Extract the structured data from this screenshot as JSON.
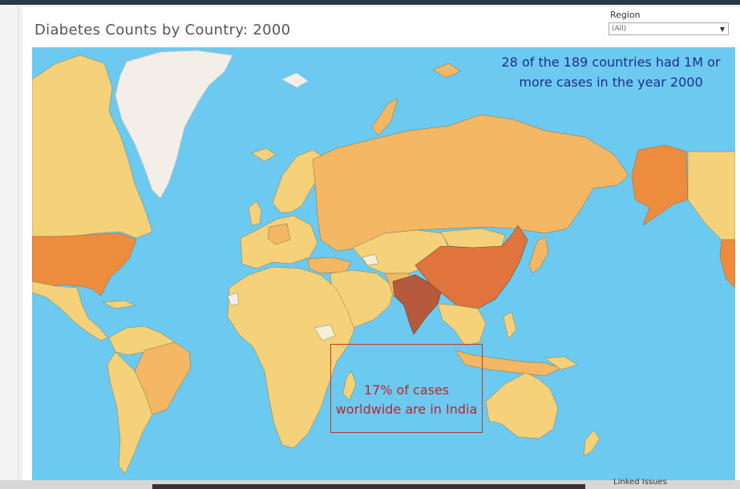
{
  "title": "Diabetes Counts by Country: 2000",
  "filter": {
    "label": "Region",
    "value": "(All)"
  },
  "annotations": {
    "top_line1": "28 of the 189 countries had 1M or",
    "top_line2": "more cases in the year 2000",
    "india_line1": "17% of cases",
    "india_line2": "worldwide are in India"
  },
  "footer": {
    "linked_issues": "Linked Issues"
  },
  "colors": {
    "ocean": "#6ccaf0",
    "low": "#f5d27a",
    "mid": "#f4b763",
    "high": "#ed8c3c",
    "very_high": "#e0743d",
    "highest": "#b55a3c",
    "no_data": "#f3efe8",
    "pale": "#f2f0d8"
  }
}
